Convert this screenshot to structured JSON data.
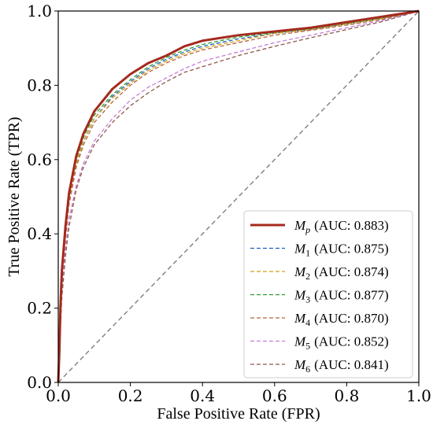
{
  "chart_data": {
    "type": "line",
    "title": "",
    "xlabel": "False Positive Rate (FPR)",
    "ylabel": "True Positive Rate (TPR)",
    "xlim": [
      0.0,
      1.0
    ],
    "ylim": [
      0.0,
      1.0
    ],
    "x_ticks": [
      "0.0",
      "0.2",
      "0.4",
      "0.6",
      "0.8",
      "1.0"
    ],
    "y_ticks": [
      "0.0",
      "0.2",
      "0.4",
      "0.6",
      "0.8",
      "1.0"
    ],
    "grid": false,
    "legend_position": "bottom-right",
    "baseline": {
      "style": "dashed",
      "color": "#7f7f7f",
      "points": [
        [
          0,
          0
        ],
        [
          1,
          1
        ]
      ]
    },
    "series": [
      {
        "name": "Mp",
        "model_base": "M",
        "model_sub": "p",
        "auc_text": "(AUC: 0.883)",
        "color": "#a52a1e",
        "style": "solid",
        "points": [
          [
            0,
            0
          ],
          [
            0.003,
            0.08
          ],
          [
            0.006,
            0.2
          ],
          [
            0.01,
            0.3
          ],
          [
            0.02,
            0.42
          ],
          [
            0.03,
            0.51
          ],
          [
            0.05,
            0.61
          ],
          [
            0.07,
            0.67
          ],
          [
            0.1,
            0.73
          ],
          [
            0.15,
            0.79
          ],
          [
            0.2,
            0.83
          ],
          [
            0.25,
            0.86
          ],
          [
            0.3,
            0.88
          ],
          [
            0.35,
            0.905
          ],
          [
            0.4,
            0.92
          ],
          [
            0.5,
            0.935
          ],
          [
            0.6,
            0.945
          ],
          [
            0.7,
            0.955
          ],
          [
            0.8,
            0.97
          ],
          [
            0.9,
            0.985
          ],
          [
            1,
            1
          ]
        ]
      },
      {
        "name": "M1",
        "model_base": "M",
        "model_sub": "1",
        "auc_text": "(AUC: 0.875)",
        "color": "#1f5fbf",
        "style": "dashed",
        "points": [
          [
            0,
            0
          ],
          [
            0.003,
            0.07
          ],
          [
            0.006,
            0.19
          ],
          [
            0.01,
            0.28
          ],
          [
            0.02,
            0.4
          ],
          [
            0.03,
            0.49
          ],
          [
            0.05,
            0.59
          ],
          [
            0.07,
            0.65
          ],
          [
            0.1,
            0.71
          ],
          [
            0.15,
            0.77
          ],
          [
            0.2,
            0.81
          ],
          [
            0.25,
            0.845
          ],
          [
            0.3,
            0.87
          ],
          [
            0.35,
            0.89
          ],
          [
            0.4,
            0.905
          ],
          [
            0.5,
            0.925
          ],
          [
            0.6,
            0.94
          ],
          [
            0.7,
            0.95
          ],
          [
            0.8,
            0.965
          ],
          [
            0.9,
            0.98
          ],
          [
            1,
            1
          ]
        ]
      },
      {
        "name": "M2",
        "model_base": "M",
        "model_sub": "2",
        "auc_text": "(AUC: 0.874)",
        "color": "#d4a017",
        "style": "dashed",
        "points": [
          [
            0,
            0
          ],
          [
            0.003,
            0.07
          ],
          [
            0.006,
            0.19
          ],
          [
            0.01,
            0.28
          ],
          [
            0.02,
            0.4
          ],
          [
            0.03,
            0.49
          ],
          [
            0.05,
            0.59
          ],
          [
            0.07,
            0.65
          ],
          [
            0.1,
            0.71
          ],
          [
            0.15,
            0.765
          ],
          [
            0.2,
            0.805
          ],
          [
            0.25,
            0.84
          ],
          [
            0.3,
            0.865
          ],
          [
            0.35,
            0.885
          ],
          [
            0.4,
            0.9
          ],
          [
            0.5,
            0.92
          ],
          [
            0.6,
            0.94
          ],
          [
            0.7,
            0.95
          ],
          [
            0.8,
            0.965
          ],
          [
            0.9,
            0.98
          ],
          [
            1,
            1
          ]
        ]
      },
      {
        "name": "M3",
        "model_base": "M",
        "model_sub": "3",
        "auc_text": "(AUC: 0.877)",
        "color": "#2e9a2e",
        "style": "dashed",
        "points": [
          [
            0,
            0
          ],
          [
            0.003,
            0.075
          ],
          [
            0.006,
            0.195
          ],
          [
            0.01,
            0.29
          ],
          [
            0.02,
            0.41
          ],
          [
            0.03,
            0.5
          ],
          [
            0.05,
            0.6
          ],
          [
            0.07,
            0.66
          ],
          [
            0.1,
            0.72
          ],
          [
            0.15,
            0.775
          ],
          [
            0.2,
            0.815
          ],
          [
            0.25,
            0.85
          ],
          [
            0.3,
            0.875
          ],
          [
            0.35,
            0.895
          ],
          [
            0.4,
            0.91
          ],
          [
            0.5,
            0.93
          ],
          [
            0.6,
            0.942
          ],
          [
            0.7,
            0.952
          ],
          [
            0.8,
            0.967
          ],
          [
            0.9,
            0.982
          ],
          [
            1,
            1
          ]
        ]
      },
      {
        "name": "M4",
        "model_base": "M",
        "model_sub": "4",
        "auc_text": "(AUC: 0.870)",
        "color": "#b5653c",
        "style": "dashed",
        "points": [
          [
            0,
            0
          ],
          [
            0.003,
            0.07
          ],
          [
            0.006,
            0.18
          ],
          [
            0.01,
            0.27
          ],
          [
            0.02,
            0.39
          ],
          [
            0.03,
            0.48
          ],
          [
            0.05,
            0.58
          ],
          [
            0.07,
            0.64
          ],
          [
            0.1,
            0.7
          ],
          [
            0.15,
            0.755
          ],
          [
            0.2,
            0.8
          ],
          [
            0.25,
            0.835
          ],
          [
            0.3,
            0.86
          ],
          [
            0.35,
            0.88
          ],
          [
            0.4,
            0.895
          ],
          [
            0.5,
            0.915
          ],
          [
            0.6,
            0.935
          ],
          [
            0.7,
            0.948
          ],
          [
            0.8,
            0.962
          ],
          [
            0.9,
            0.978
          ],
          [
            1,
            1
          ]
        ]
      },
      {
        "name": "M5",
        "model_base": "M",
        "model_sub": "5",
        "auc_text": "(AUC: 0.852)",
        "color": "#c77dd6",
        "style": "dashed",
        "points": [
          [
            0,
            0
          ],
          [
            0.003,
            0.06
          ],
          [
            0.006,
            0.16
          ],
          [
            0.01,
            0.24
          ],
          [
            0.02,
            0.36
          ],
          [
            0.03,
            0.44
          ],
          [
            0.05,
            0.53
          ],
          [
            0.07,
            0.59
          ],
          [
            0.1,
            0.65
          ],
          [
            0.15,
            0.71
          ],
          [
            0.2,
            0.76
          ],
          [
            0.25,
            0.795
          ],
          [
            0.3,
            0.82
          ],
          [
            0.35,
            0.845
          ],
          [
            0.4,
            0.865
          ],
          [
            0.5,
            0.89
          ],
          [
            0.6,
            0.915
          ],
          [
            0.7,
            0.935
          ],
          [
            0.8,
            0.955
          ],
          [
            0.9,
            0.975
          ],
          [
            1,
            1
          ]
        ]
      },
      {
        "name": "M6",
        "model_base": "M",
        "model_sub": "6",
        "auc_text": "(AUC: 0.841)",
        "color": "#8c5a4a",
        "style": "dashed",
        "points": [
          [
            0,
            0
          ],
          [
            0.003,
            0.055
          ],
          [
            0.006,
            0.15
          ],
          [
            0.01,
            0.23
          ],
          [
            0.02,
            0.34
          ],
          [
            0.03,
            0.42
          ],
          [
            0.05,
            0.52
          ],
          [
            0.07,
            0.58
          ],
          [
            0.1,
            0.64
          ],
          [
            0.15,
            0.7
          ],
          [
            0.2,
            0.745
          ],
          [
            0.25,
            0.78
          ],
          [
            0.3,
            0.81
          ],
          [
            0.35,
            0.835
          ],
          [
            0.4,
            0.85
          ],
          [
            0.5,
            0.88
          ],
          [
            0.6,
            0.905
          ],
          [
            0.7,
            0.928
          ],
          [
            0.8,
            0.95
          ],
          [
            0.9,
            0.972
          ],
          [
            1,
            1
          ]
        ]
      }
    ]
  }
}
